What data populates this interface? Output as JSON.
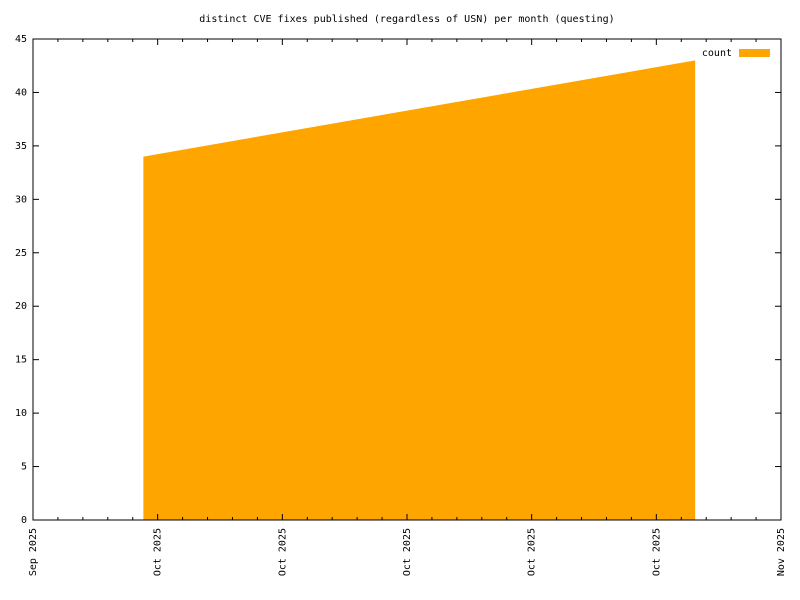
{
  "chart_data": {
    "type": "area",
    "title": "distinct CVE fixes published (regardless of USN) per month (questing)",
    "x": [
      "2025-09-10",
      "2025-10-25"
    ],
    "series": [
      {
        "name": "count",
        "color": "#ffa500",
        "values": [
          34,
          43
        ]
      }
    ],
    "xlim": [
      "2025-09-01",
      "2025-11-01"
    ],
    "xticks": [
      {
        "value": "2025-09-01",
        "label": "Sep 2025"
      },
      {
        "value": "2025-09-11T04:00:00Z",
        "label": "Oct 2025"
      },
      {
        "value": "2025-09-21T08:00:00Z",
        "label": "Oct 2025"
      },
      {
        "value": "2025-10-01T12:00:00Z",
        "label": "Oct 2025"
      },
      {
        "value": "2025-10-11T16:00:00Z",
        "label": "Oct 2025"
      },
      {
        "value": "2025-10-21T20:00:00Z",
        "label": "Oct 2025"
      },
      {
        "value": "2025-11-01",
        "label": "Nov 2025"
      }
    ],
    "ylim": [
      0,
      45
    ],
    "yticks": [
      0,
      5,
      10,
      15,
      20,
      25,
      30,
      35,
      40,
      45
    ],
    "legend": "top-right",
    "grid": false
  }
}
